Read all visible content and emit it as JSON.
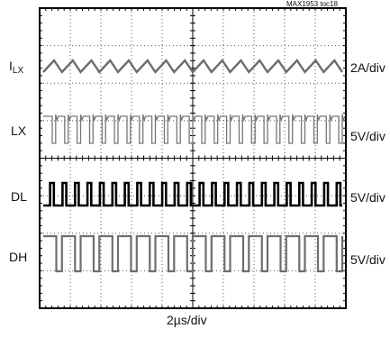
{
  "chart_data": {
    "type": "line",
    "note": "MAX1953 toc18",
    "xlabel": "2µs/div",
    "x_divisions": 10,
    "y_divisions": 8,
    "grid": true,
    "series": [
      {
        "name_main": "I",
        "name_sub": "LX",
        "scale": "2A/div",
        "waveform": "triangle",
        "cycles": 16
      },
      {
        "name_main": "LX",
        "name_sub": "",
        "scale": "5V/div",
        "waveform": "square-ringing",
        "cycles": 24
      },
      {
        "name_main": "DL",
        "name_sub": "",
        "scale": "5V/div",
        "waveform": "square",
        "cycles": 24
      },
      {
        "name_main": "DH",
        "name_sub": "",
        "scale": "5V/div",
        "waveform": "square",
        "cycles": 16
      }
    ]
  }
}
